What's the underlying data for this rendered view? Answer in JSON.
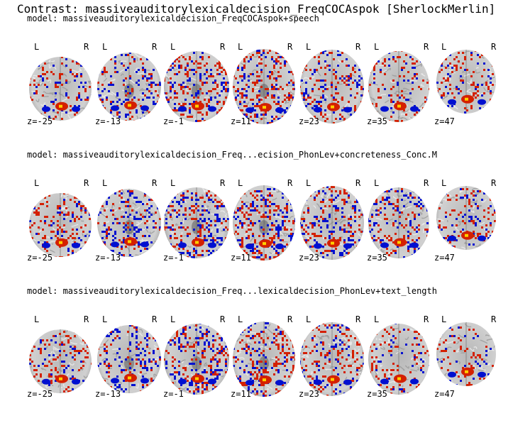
{
  "figure": {
    "title": "Contrast: massiveauditorylexicaldecision_FreqCOCAspok [SherlockMerlin]"
  },
  "orientation": {
    "left": "L",
    "right": "R"
  },
  "colors": {
    "positive": "#d42000",
    "positive_peak": "#ffd000",
    "negative": "#0010d0",
    "negative_peak": "#00d0ff",
    "background": "#ffffff"
  },
  "rows": [
    {
      "model_label": "model: massiveauditorylexicaldecision_FreqCOCAspok+speech",
      "slices": [
        {
          "z_label": "z=-25",
          "pos_density": 0.1,
          "neg_density": 0.05
        },
        {
          "z_label": "z=-13",
          "pos_density": 0.07,
          "neg_density": 0.12
        },
        {
          "z_label": "z=-1",
          "pos_density": 0.16,
          "neg_density": 0.1
        },
        {
          "z_label": "z=11",
          "pos_density": 0.16,
          "neg_density": 0.1
        },
        {
          "z_label": "z=23",
          "pos_density": 0.12,
          "neg_density": 0.08
        },
        {
          "z_label": "z=35",
          "pos_density": 0.08,
          "neg_density": 0.05
        },
        {
          "z_label": "z=47",
          "pos_density": 0.09,
          "neg_density": 0.06
        }
      ]
    },
    {
      "model_label": "model: massiveauditorylexicaldecision_Freq...ecision_PhonLev+concreteness_Conc.M",
      "slices": [
        {
          "z_label": "z=-25",
          "pos_density": 0.12,
          "neg_density": 0.06
        },
        {
          "z_label": "z=-13",
          "pos_density": 0.08,
          "neg_density": 0.13
        },
        {
          "z_label": "z=-1",
          "pos_density": 0.12,
          "neg_density": 0.13
        },
        {
          "z_label": "z=11",
          "pos_density": 0.15,
          "neg_density": 0.12
        },
        {
          "z_label": "z=23",
          "pos_density": 0.13,
          "neg_density": 0.1
        },
        {
          "z_label": "z=35",
          "pos_density": 0.09,
          "neg_density": 0.09
        },
        {
          "z_label": "z=47",
          "pos_density": 0.1,
          "neg_density": 0.07
        }
      ]
    },
    {
      "model_label": "model: massiveauditorylexicaldecision_Freq...lexicaldecision_PhonLev+text_length",
      "slices": [
        {
          "z_label": "z=-25",
          "pos_density": 0.11,
          "neg_density": 0.05
        },
        {
          "z_label": "z=-13",
          "pos_density": 0.07,
          "neg_density": 0.12
        },
        {
          "z_label": "z=-1",
          "pos_density": 0.12,
          "neg_density": 0.14
        },
        {
          "z_label": "z=11",
          "pos_density": 0.16,
          "neg_density": 0.1
        },
        {
          "z_label": "z=23",
          "pos_density": 0.14,
          "neg_density": 0.08
        },
        {
          "z_label": "z=35",
          "pos_density": 0.09,
          "neg_density": 0.05
        },
        {
          "z_label": "z=47",
          "pos_density": 0.08,
          "neg_density": 0.05
        }
      ]
    }
  ]
}
